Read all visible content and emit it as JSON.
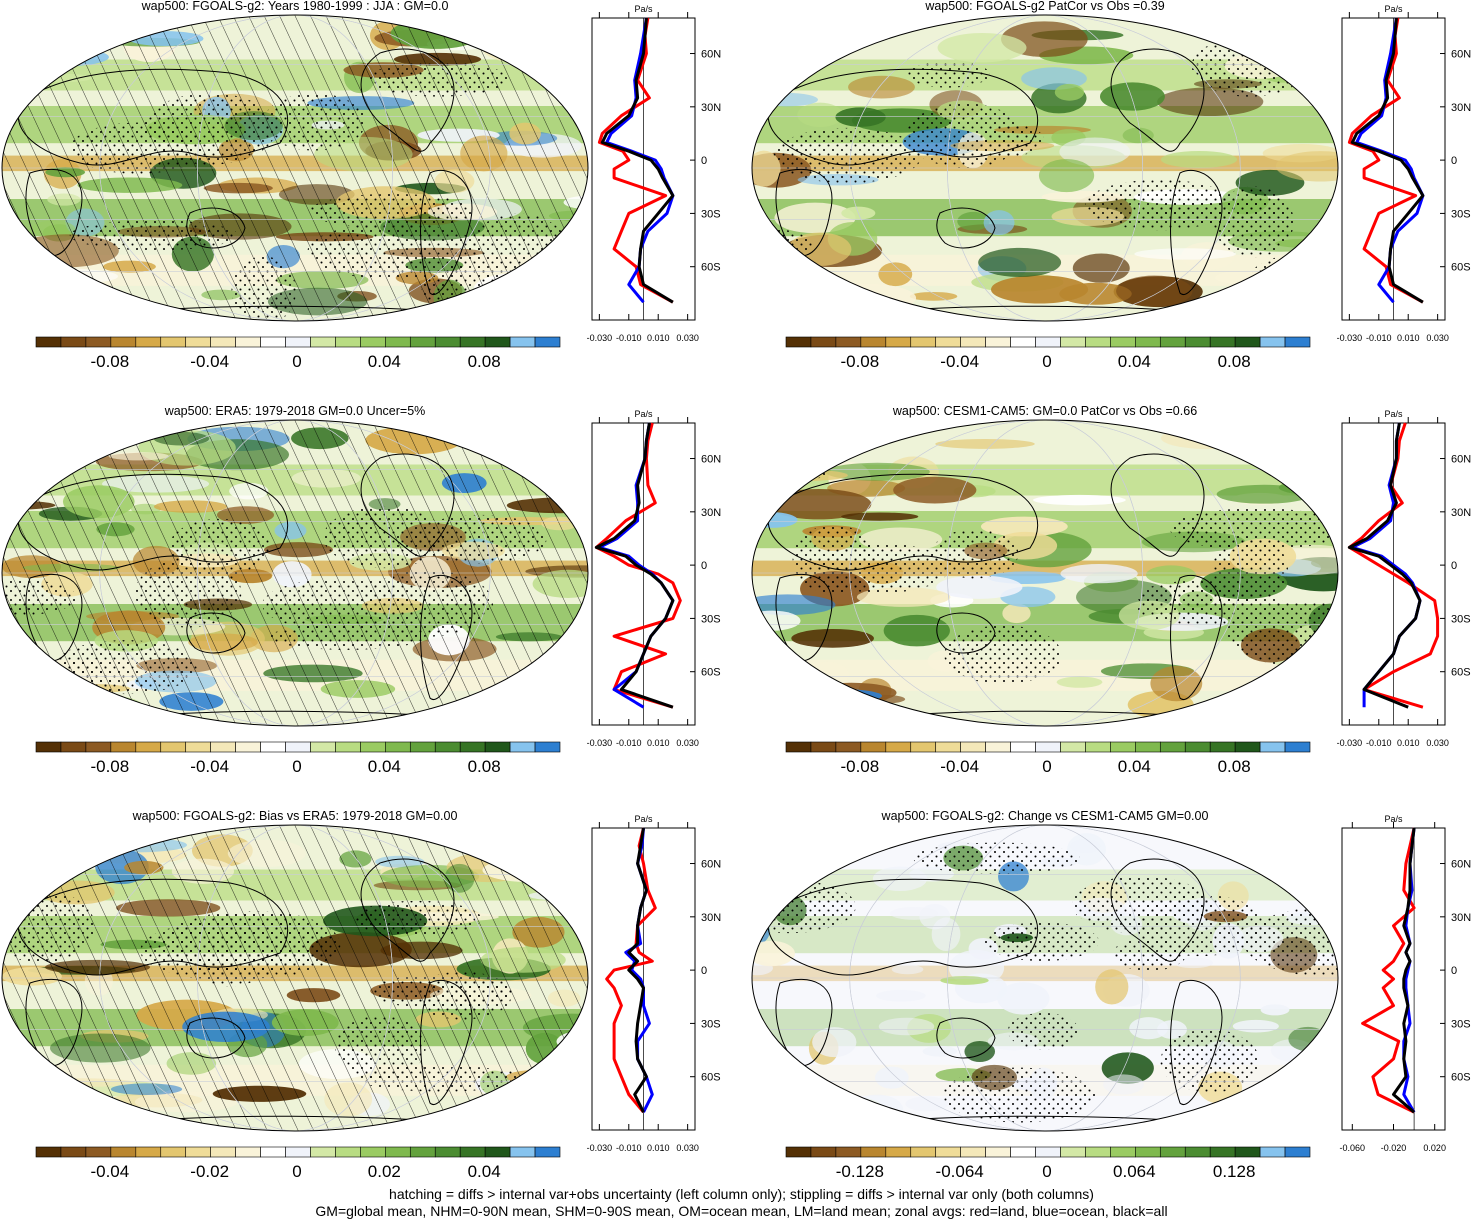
{
  "colors": {
    "palette": [
      "#543005",
      "#7a4a16",
      "#8c5a23",
      "#b9862f",
      "#d6a948",
      "#e3c66f",
      "#efdc98",
      "#f4e8b9",
      "#f9f3d9",
      "#ffffff",
      "#f0f3fa",
      "#d3e8a6",
      "#b8dc82",
      "#9acb62",
      "#7fb94e",
      "#63a23d",
      "#4b8c31",
      "#367425",
      "#20571b",
      "#86c3ee",
      "#2d7fd1"
    ],
    "land_line": "#ff0000",
    "ocean_line": "#0000ff",
    "all_line": "#000000"
  },
  "panels": [
    {
      "title": "wap500: FGOALS-g2: Years 1980-1999 : JJA : GM=0.0",
      "cbar_ticks": [
        "-0.08",
        "-0.04",
        "0",
        "0.04",
        "0.08"
      ],
      "zonal_units": "Pa/s",
      "zonal_xticks": [
        "-0.030",
        "-0.010",
        "0.010",
        "0.030"
      ],
      "lat_ticks": [
        "60N",
        "30N",
        "0",
        "30S",
        "60S"
      ],
      "hatched": true
    },
    {
      "title": "wap500: FGOALS-g2 PatCor vs Obs =0.39",
      "cbar_ticks": [
        "-0.08",
        "-0.04",
        "0",
        "0.04",
        "0.08"
      ],
      "zonal_units": "Pa/s",
      "zonal_xticks": [
        "-0.030",
        "-0.010",
        "0.010",
        "0.030"
      ],
      "lat_ticks": [
        "60N",
        "30N",
        "0",
        "30S",
        "60S"
      ],
      "hatched": false
    },
    {
      "title": "wap500: ERA5: 1979-2018 GM=0.0 Uncer=5%",
      "cbar_ticks": [
        "-0.08",
        "-0.04",
        "0",
        "0.04",
        "0.08"
      ],
      "zonal_units": "Pa/s",
      "zonal_xticks": [
        "-0.030",
        "-0.010",
        "0.010",
        "0.030"
      ],
      "lat_ticks": [
        "60N",
        "30N",
        "0",
        "30S",
        "60S"
      ],
      "hatched": true
    },
    {
      "title": "wap500: CESM1-CAM5: GM=0.0 PatCor vs Obs =0.66",
      "cbar_ticks": [
        "-0.08",
        "-0.04",
        "0",
        "0.04",
        "0.08"
      ],
      "zonal_units": "Pa/s",
      "zonal_xticks": [
        "-0.030",
        "-0.010",
        "0.010",
        "0.030"
      ],
      "lat_ticks": [
        "60N",
        "30N",
        "0",
        "30S",
        "60S"
      ],
      "hatched": false
    },
    {
      "title": "wap500: FGOALS-g2: Bias vs ERA5: 1979-2018 GM=0.00",
      "cbar_ticks": [
        "-0.04",
        "-0.02",
        "0",
        "0.02",
        "0.04"
      ],
      "zonal_units": "Pa/s",
      "zonal_xticks": [
        "-0.030",
        "-0.010",
        "0.010",
        "0.030"
      ],
      "lat_ticks": [
        "60N",
        "30N",
        "0",
        "30S",
        "60S"
      ],
      "hatched": true
    },
    {
      "title": "wap500: FGOALS-g2: Change vs CESM1-CAM5 GM=0.00",
      "cbar_ticks": [
        "-0.128",
        "-0.064",
        "0",
        "0.064",
        "0.128"
      ],
      "zonal_units": "Pa/s",
      "zonal_xticks": [
        "-0.060",
        "-0.020",
        "0.020"
      ],
      "lat_ticks": [
        "60N",
        "30N",
        "0",
        "30S",
        "60S"
      ],
      "hatched": false
    }
  ],
  "footer": {
    "line1": "hatching = diffs > internal var+obs uncertainty (left column only); stippling = diffs > internal var only (both columns)",
    "line2": "GM=global mean, NHM=0-90N mean, SHM=0-90S mean, OM=ocean mean, LM=land mean; zonal avgs: red=land, blue=ocean, black=all"
  },
  "chart_data": [
    {
      "type": "heatmap",
      "title": "wap500: FGOALS-g2: Years 1980-1999 : JJA : GM=0.0",
      "colorbar_ticks": [
        -0.08,
        -0.04,
        0,
        0.04,
        0.08
      ],
      "units": "Pa/s",
      "zonal_mean": {
        "lat": [
          80,
          70,
          60,
          45,
          35,
          25,
          15,
          10,
          5,
          0,
          -5,
          -10,
          -20,
          -30,
          -40,
          -50,
          -60,
          -70,
          -80
        ],
        "all": [
          0.002,
          0.001,
          0.0,
          -0.005,
          -0.004,
          -0.01,
          -0.025,
          -0.028,
          -0.01,
          0.005,
          0.01,
          0.013,
          0.02,
          0.01,
          0.0,
          -0.002,
          -0.003,
          0.0,
          0.02
        ],
        "land": [
          0.003,
          0.001,
          0.002,
          -0.004,
          0.004,
          -0.015,
          -0.028,
          -0.03,
          -0.014,
          -0.01,
          -0.02,
          -0.02,
          0.015,
          -0.01,
          -0.015,
          -0.02,
          -0.005,
          -0.002,
          0.02
        ],
        "ocean": [
          0.002,
          0.0,
          -0.002,
          -0.006,
          -0.005,
          -0.008,
          -0.022,
          -0.025,
          -0.008,
          0.008,
          0.012,
          0.014,
          0.02,
          0.016,
          0.003,
          -0.002,
          -0.003,
          -0.01,
          0.0
        ]
      }
    },
    {
      "type": "heatmap",
      "title": "wap500: FGOALS-g2 PatCor vs Obs =0.39",
      "colorbar_ticks": [
        -0.08,
        -0.04,
        0,
        0.04,
        0.08
      ],
      "units": "Pa/s",
      "zonal_mean": {
        "lat": [
          80,
          70,
          60,
          45,
          35,
          25,
          15,
          10,
          5,
          0,
          -5,
          -10,
          -20,
          -30,
          -40,
          -50,
          -60,
          -70,
          -80
        ],
        "all": [
          0.002,
          0.001,
          0.0,
          -0.005,
          -0.004,
          -0.01,
          -0.025,
          -0.028,
          -0.01,
          0.005,
          0.01,
          0.013,
          0.02,
          0.01,
          0.0,
          -0.002,
          -0.003,
          0.0,
          0.02
        ],
        "land": [
          0.003,
          0.001,
          0.002,
          -0.004,
          0.004,
          -0.015,
          -0.028,
          -0.03,
          -0.014,
          -0.01,
          -0.02,
          -0.02,
          0.015,
          -0.01,
          -0.015,
          -0.02,
          -0.005,
          -0.002,
          0.02
        ],
        "ocean": [
          0.002,
          0.0,
          -0.002,
          -0.006,
          -0.005,
          -0.008,
          -0.022,
          -0.025,
          -0.008,
          0.008,
          0.012,
          0.014,
          0.02,
          0.016,
          0.003,
          -0.002,
          -0.003,
          -0.01,
          0.0
        ]
      }
    },
    {
      "type": "heatmap",
      "title": "wap500: ERA5: 1979-2018 GM=0.0 Uncer=5%",
      "colorbar_ticks": [
        -0.08,
        -0.04,
        0,
        0.04,
        0.08
      ],
      "units": "Pa/s",
      "zonal_mean": {
        "lat": [
          80,
          70,
          60,
          45,
          35,
          25,
          15,
          10,
          5,
          0,
          -5,
          -10,
          -20,
          -30,
          -40,
          -50,
          -60,
          -70,
          -80
        ],
        "all": [
          0.004,
          0.002,
          0.001,
          -0.004,
          -0.003,
          -0.006,
          -0.02,
          -0.032,
          -0.012,
          -0.005,
          0.005,
          0.012,
          0.02,
          0.015,
          0.005,
          0.0,
          -0.005,
          -0.015,
          0.02
        ],
        "land": [
          0.006,
          0.003,
          0.002,
          0.003,
          0.008,
          -0.012,
          -0.025,
          -0.032,
          -0.02,
          -0.01,
          0.01,
          0.02,
          0.025,
          0.02,
          -0.02,
          0.015,
          -0.015,
          -0.02,
          0.02
        ],
        "ocean": [
          0.004,
          0.002,
          0.001,
          -0.005,
          -0.004,
          -0.004,
          -0.018,
          -0.03,
          -0.01,
          -0.003,
          0.006,
          0.012,
          0.02,
          0.015,
          0.005,
          0.0,
          -0.005,
          -0.02,
          0.0
        ]
      }
    },
    {
      "type": "heatmap",
      "title": "wap500: CESM1-CAM5: GM=0.0 PatCor vs Obs =0.66",
      "colorbar_ticks": [
        -0.08,
        -0.04,
        0,
        0.04,
        0.08
      ],
      "units": "Pa/s",
      "zonal_mean": {
        "lat": [
          80,
          70,
          60,
          45,
          35,
          25,
          15,
          10,
          5,
          0,
          -5,
          -10,
          -20,
          -30,
          -40,
          -50,
          -60,
          -70,
          -80
        ],
        "all": [
          0.004,
          0.002,
          0.002,
          -0.002,
          0.002,
          -0.004,
          -0.018,
          -0.03,
          -0.01,
          -0.002,
          0.006,
          0.012,
          0.018,
          0.015,
          0.004,
          0.0,
          -0.01,
          -0.02,
          0.01
        ],
        "land": [
          0.008,
          0.004,
          0.003,
          -0.002,
          0.006,
          -0.01,
          -0.022,
          -0.03,
          -0.02,
          -0.01,
          0.0,
          0.01,
          0.028,
          0.03,
          0.03,
          0.025,
          0.0,
          -0.02,
          0.02
        ],
        "ocean": [
          0.004,
          0.002,
          0.002,
          -0.003,
          0.0,
          -0.002,
          -0.016,
          -0.028,
          -0.008,
          0.0,
          0.008,
          0.013,
          0.018,
          0.015,
          0.004,
          0.0,
          -0.01,
          -0.02,
          -0.02
        ]
      }
    },
    {
      "type": "heatmap",
      "title": "wap500: FGOALS-g2: Bias vs ERA5: 1979-2018 GM=0.00",
      "colorbar_ticks": [
        -0.04,
        -0.02,
        0,
        0.02,
        0.04
      ],
      "units": "Pa/s",
      "zonal_mean": {
        "lat": [
          80,
          70,
          60,
          45,
          35,
          25,
          15,
          10,
          5,
          0,
          -5,
          -10,
          -20,
          -30,
          -40,
          -50,
          -60,
          -70,
          -80
        ],
        "all": [
          0.0,
          -0.002,
          -0.004,
          0.002,
          -0.002,
          -0.004,
          -0.004,
          -0.01,
          -0.004,
          -0.01,
          -0.004,
          0.0,
          -0.002,
          -0.004,
          -0.005,
          -0.004,
          0.002,
          -0.006,
          0.0
        ],
        "land": [
          0.0,
          -0.003,
          0.0,
          0.003,
          0.008,
          -0.004,
          -0.005,
          -0.003,
          0.006,
          -0.02,
          -0.025,
          -0.02,
          -0.015,
          -0.02,
          -0.02,
          -0.02,
          -0.015,
          -0.01,
          0.0
        ],
        "ocean": [
          0.0,
          -0.001,
          -0.004,
          0.002,
          -0.002,
          -0.004,
          -0.002,
          -0.012,
          -0.006,
          -0.008,
          -0.002,
          0.0,
          0.0,
          0.004,
          -0.004,
          -0.004,
          0.002,
          0.006,
          0.0
        ]
      }
    },
    {
      "type": "heatmap",
      "title": "wap500: FGOALS-g2: Change vs CESM1-CAM5 GM=0.00",
      "colorbar_ticks": [
        -0.128,
        -0.064,
        0,
        0.064,
        0.128
      ],
      "units": "Pa/s",
      "zonal_mean": {
        "lat": [
          80,
          70,
          60,
          45,
          35,
          25,
          15,
          10,
          5,
          0,
          -5,
          -10,
          -20,
          -30,
          -40,
          -50,
          -60,
          -70,
          -80
        ],
        "all": [
          0.0,
          -0.002,
          -0.004,
          -0.004,
          -0.006,
          -0.01,
          -0.004,
          -0.008,
          -0.004,
          -0.008,
          -0.01,
          -0.01,
          -0.006,
          -0.01,
          -0.008,
          -0.01,
          -0.008,
          -0.02,
          0.0
        ],
        "land": [
          0.0,
          -0.004,
          -0.008,
          -0.01,
          0.0,
          -0.02,
          -0.01,
          -0.015,
          -0.02,
          -0.03,
          -0.02,
          -0.03,
          -0.02,
          -0.05,
          -0.015,
          -0.02,
          -0.04,
          -0.035,
          0.0
        ],
        "ocean": [
          0.0,
          -0.002,
          -0.004,
          -0.002,
          -0.006,
          -0.008,
          -0.004,
          -0.008,
          -0.004,
          -0.006,
          -0.008,
          -0.008,
          -0.006,
          -0.004,
          -0.01,
          -0.01,
          -0.006,
          -0.01,
          0.0
        ]
      }
    }
  ]
}
